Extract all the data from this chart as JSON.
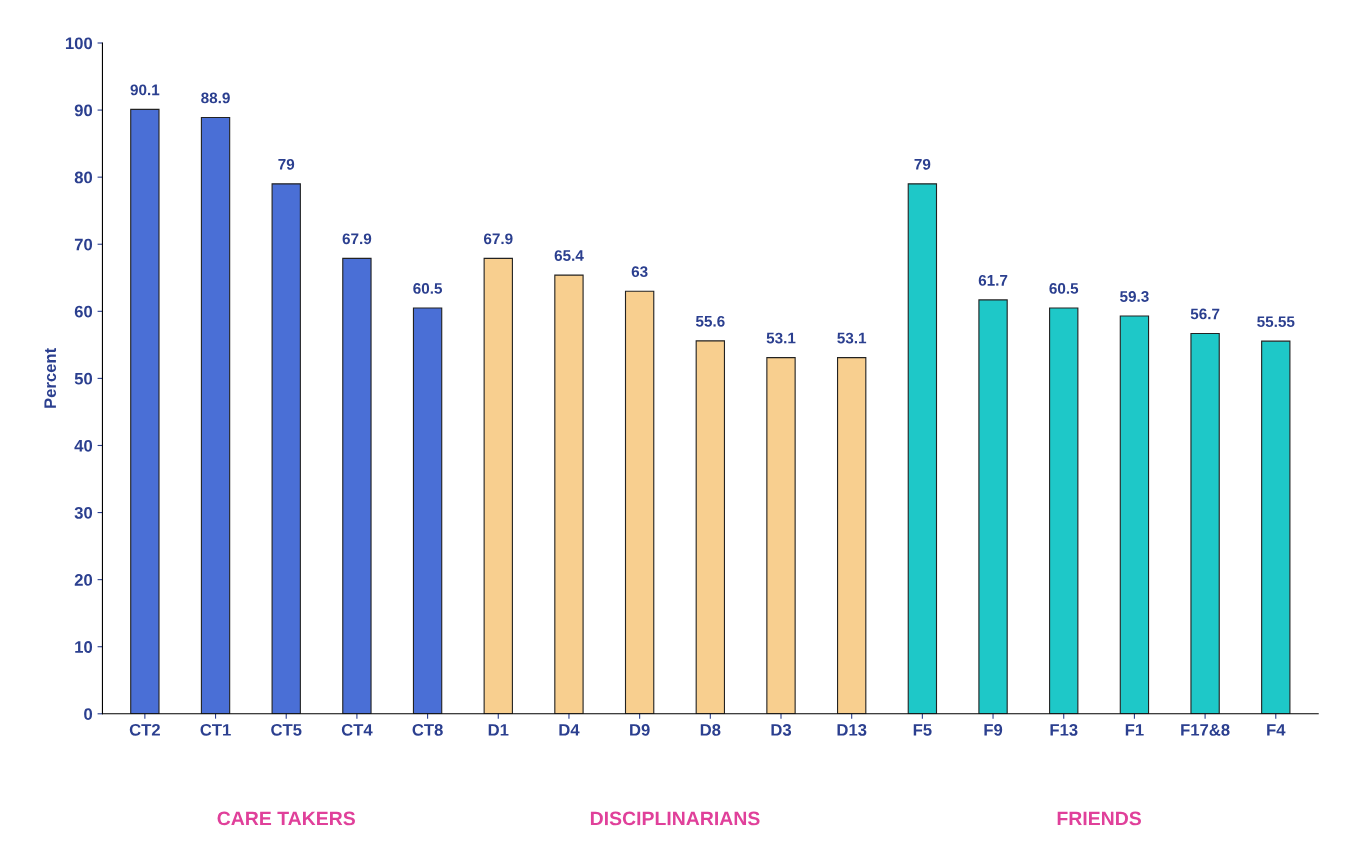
{
  "chart_data": {
    "type": "bar",
    "ylabel": "Percent",
    "categories": [
      "CT2",
      "CT1",
      "CT5",
      "CT4",
      "CT8",
      "D1",
      "D4",
      "D9",
      "D8",
      "D3",
      "D13",
      "F5",
      "F9",
      "F13",
      "F1",
      "F17&8",
      "F4"
    ],
    "values": [
      90.1,
      88.9,
      79,
      67.9,
      60.5,
      67.9,
      65.4,
      63,
      55.6,
      53.1,
      53.1,
      79,
      61.7,
      60.5,
      59.3,
      56.7,
      55.55
    ],
    "colors": [
      "#4a6fd6",
      "#4a6fd6",
      "#4a6fd6",
      "#4a6fd6",
      "#4a6fd6",
      "#f8cf8f",
      "#f8cf8f",
      "#f8cf8f",
      "#f8cf8f",
      "#f8cf8f",
      "#f8cf8f",
      "#1ec8c8",
      "#1ec8c8",
      "#1ec8c8",
      "#1ec8c8",
      "#1ec8c8",
      "#1ec8c8"
    ],
    "ylim": [
      0,
      100
    ],
    "yticks": [
      0,
      10,
      20,
      30,
      40,
      50,
      60,
      70,
      80,
      90,
      100
    ],
    "data_labels": true,
    "grid": false,
    "annotations": [
      "CARE TAKERS",
      "DISCIPLINARIANS",
      "FRIENDS"
    ]
  }
}
